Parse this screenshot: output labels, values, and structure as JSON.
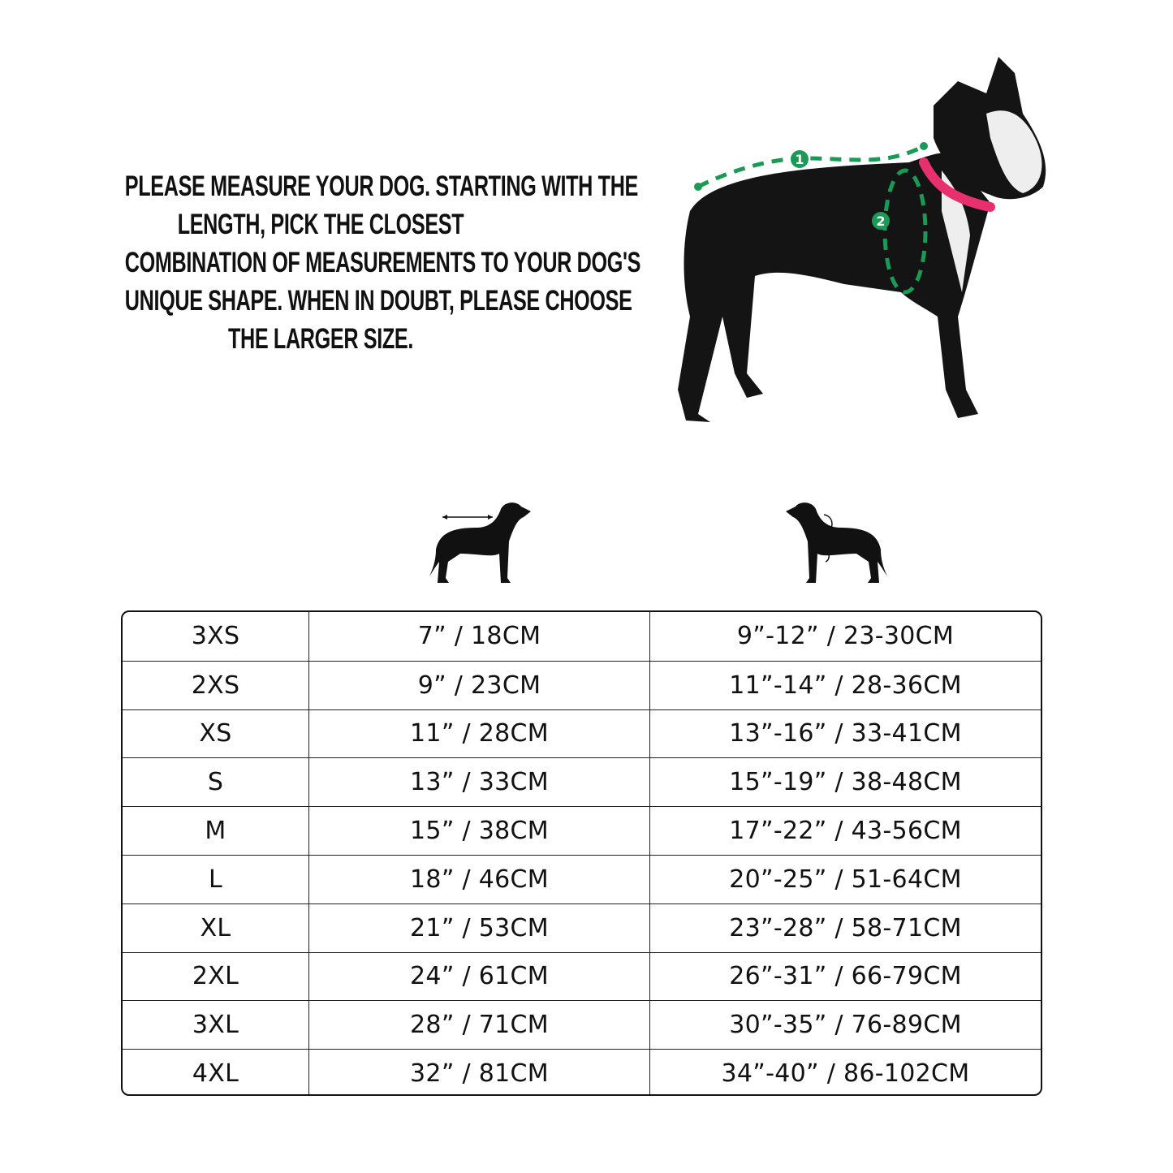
{
  "instructions": {
    "lines": [
      "PLEASE MEASURE YOUR DOG. STARTING WITH THE",
      "LENGTH, PICK THE CLOSEST",
      "COMBINATION OF MEASUREMENTS TO YOUR DOG'S",
      "UNIQUE SHAPE. WHEN IN DOUBT, PLEASE CHOOSE",
      "THE LARGER SIZE."
    ]
  },
  "photo": {
    "markers": [
      "1",
      "2"
    ],
    "marker_color": "#1a9a55",
    "collar_color": "#e8306f"
  },
  "column_icons": [
    "dog-length-icon",
    "dog-girth-icon"
  ],
  "size_table": {
    "rows": [
      {
        "size": "3XS",
        "length": "7” / 18CM",
        "girth": "9”-12” / 23-30CM"
      },
      {
        "size": "2XS",
        "length": "9” / 23CM",
        "girth": "11”-14” / 28-36CM"
      },
      {
        "size": "XS",
        "length": "11” / 28CM",
        "girth": "13”-16” / 33-41CM"
      },
      {
        "size": "S",
        "length": "13” / 33CM",
        "girth": "15”-19” / 38-48CM"
      },
      {
        "size": "M",
        "length": "15” / 38CM",
        "girth": "17”-22” / 43-56CM"
      },
      {
        "size": "L",
        "length": "18” / 46CM",
        "girth": "20”-25” / 51-64CM"
      },
      {
        "size": "XL",
        "length": "21” / 53CM",
        "girth": "23”-28” / 58-71CM"
      },
      {
        "size": "2XL",
        "length": "24” / 61CM",
        "girth": "26”-31” / 66-79CM"
      },
      {
        "size": "3XL",
        "length": "28” / 71CM",
        "girth": "30”-35” / 76-89CM"
      },
      {
        "size": "4XL",
        "length": "32” / 81CM",
        "girth": "34”-40” / 86-102CM"
      }
    ]
  }
}
